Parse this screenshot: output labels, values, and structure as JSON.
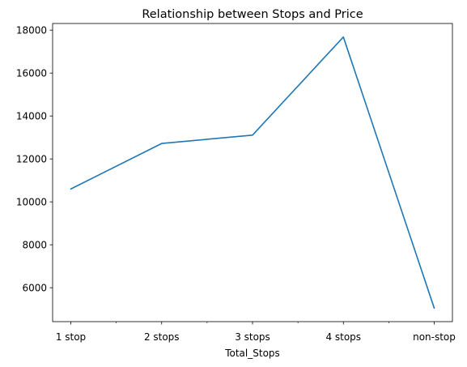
{
  "chart_data": {
    "type": "line",
    "title": "Relationship between Stops and Price",
    "xlabel": "Total_Stops",
    "ylabel": "",
    "categories": [
      "1 stop",
      "2 stops",
      "3 stops",
      "4 stops",
      "non-stop"
    ],
    "series": [
      {
        "values": [
          10600,
          12720,
          13110,
          17680,
          5050
        ],
        "color": "#1f77b4"
      }
    ],
    "yticks": [
      6000,
      8000,
      10000,
      12000,
      14000,
      16000,
      18000
    ],
    "ylim": [
      4420,
      18310
    ],
    "grid": false,
    "legend": "none"
  }
}
